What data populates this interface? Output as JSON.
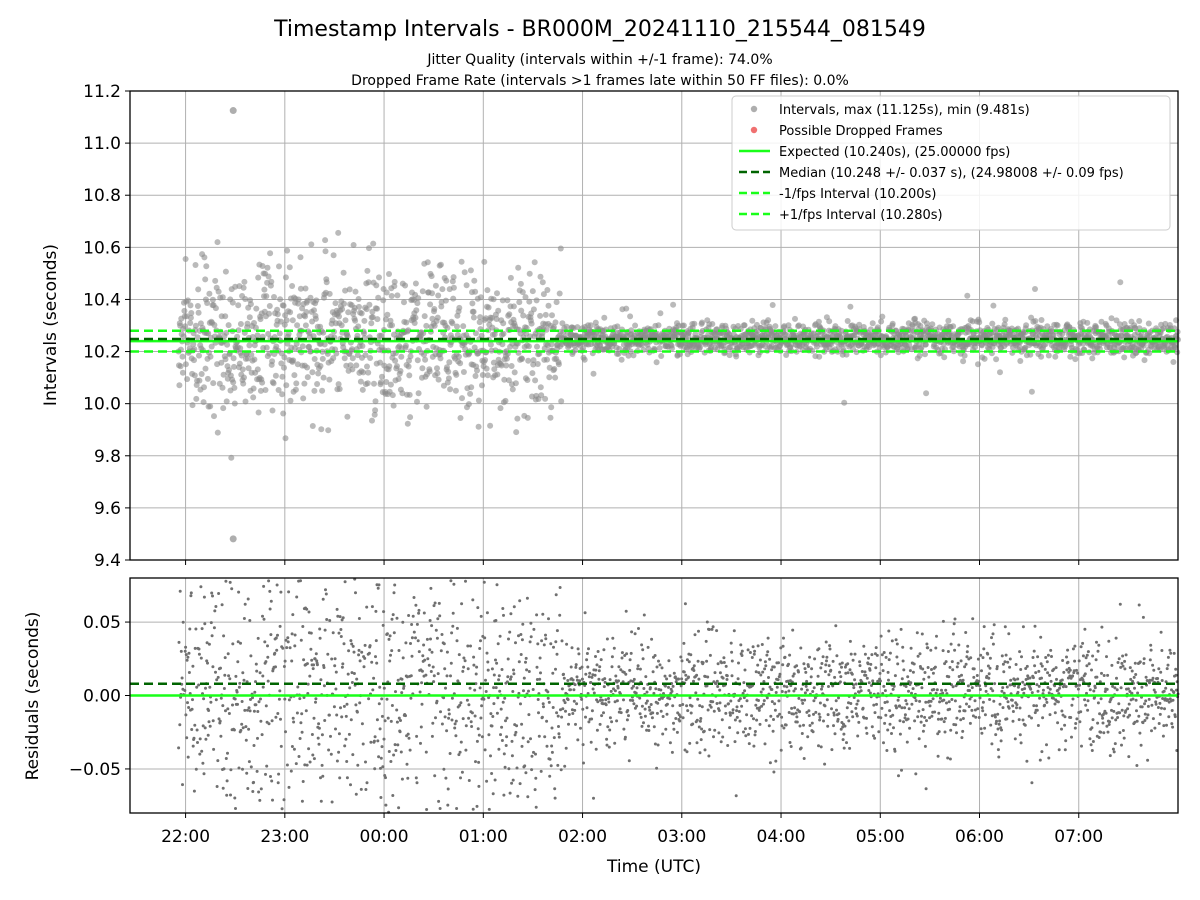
{
  "chart_data": [
    {
      "type": "scatter",
      "title": "Timestamp Intervals - BR000M_20241110_215544_081549",
      "subtitle_lines": [
        "Jitter Quality (intervals within +/-1 frame): 74.0%",
        "Dropped Frame Rate (intervals >1 frames late within 50 FF files): 0.0%"
      ],
      "ylabel": "Intervals (seconds)",
      "ylim": [
        9.4,
        11.2
      ],
      "y_ticks": [
        "9.4",
        "9.6",
        "9.8",
        "10.0",
        "10.2",
        "10.4",
        "10.6",
        "10.8",
        "11.0",
        "11.2"
      ],
      "x_range_hours": [
        21.44,
        32.0
      ],
      "grid": true,
      "legend_position": "top-right",
      "series": [
        {
          "name": "Intervals, max (11.125s), min (9.481s)",
          "kind": "points",
          "color": "#8c8c8c",
          "data_start_hour": 21.93,
          "data_end_hour": 32.0,
          "max": 11.125,
          "min": 9.481,
          "extremes": [
            {
              "x": 22.48,
              "y": 11.125
            },
            {
              "x": 22.48,
              "y": 9.481
            }
          ]
        },
        {
          "name": "Possible Dropped Frames",
          "kind": "points",
          "color": "#f07070",
          "count": 0
        },
        {
          "name": "Expected (10.240s), (25.00000 fps)",
          "kind": "hline",
          "style": "solid",
          "color": "#19ff19",
          "y": 10.24
        },
        {
          "name": "Median (10.248 +/- 0.037 s), (24.98008 +/- 0.09 fps)",
          "kind": "hline",
          "style": "dashed",
          "color": "#006400",
          "y": 10.248
        },
        {
          "name": "-1/fps Interval (10.200s)",
          "kind": "hline",
          "style": "dashed",
          "color": "#19ff19",
          "y": 10.2
        },
        {
          "name": "+1/fps Interval (10.280s)",
          "kind": "hline",
          "style": "dashed",
          "color": "#19ff19",
          "y": 10.28
        }
      ]
    },
    {
      "type": "scatter",
      "ylabel": "Residuals (seconds)",
      "xlabel": "Time (UTC)",
      "ylim": [
        -0.08,
        0.08
      ],
      "y_ticks": [
        "−0.05",
        "0.00",
        "0.05"
      ],
      "x_ticks": [
        "22:00",
        "23:00",
        "00:00",
        "01:00",
        "02:00",
        "03:00",
        "04:00",
        "05:00",
        "06:00",
        "07:00"
      ],
      "x_range_hours": [
        21.44,
        32.0
      ],
      "grid": true,
      "series": [
        {
          "kind": "points",
          "color": "#707070",
          "data_start_hour": 21.93,
          "data_end_hour": 32.0
        },
        {
          "kind": "hline",
          "style": "solid",
          "color": "#19ff19",
          "y": 0.0
        },
        {
          "kind": "hline",
          "style": "dashed",
          "color": "#006400",
          "y": 0.008
        }
      ]
    }
  ]
}
